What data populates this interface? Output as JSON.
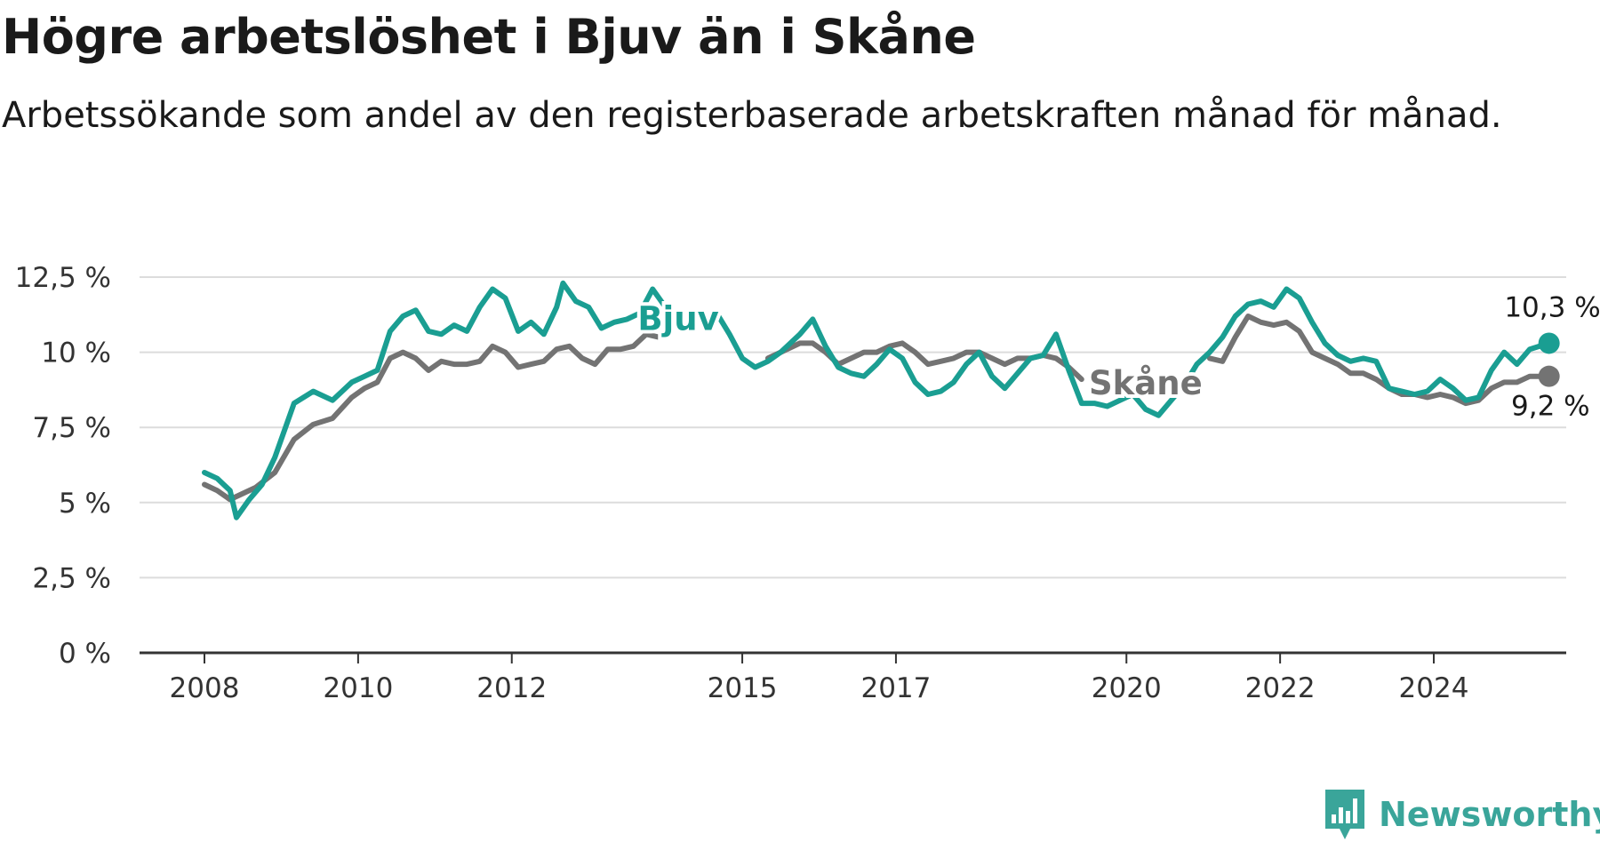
{
  "title": "Högre arbetslöshet i Bjuv än i Skåne",
  "subtitle": "Arbetssökande som andel av den registerbaserade arbetskraften månad för månad.",
  "brand": "Newsworthy",
  "colors": {
    "bjuv": "#1a9e92",
    "skane": "#737373",
    "grid": "#dcdcdc",
    "axis": "#333333",
    "brand": "#3aa59a"
  },
  "chart_data": {
    "type": "line",
    "title": "Högre arbetslöshet i Bjuv än i Skåne",
    "subtitle": "Arbetssökande som andel av den registerbaserade arbetskraften månad för månad.",
    "y_unit": "%",
    "ylim": [
      0,
      12.5
    ],
    "xlim": [
      "2007-09",
      "2025-09"
    ],
    "grid": true,
    "y_ticks": [
      0,
      2.5,
      5,
      7.5,
      10,
      12.5
    ],
    "y_tick_labels": [
      "0 %",
      "2,5 %",
      "5 %",
      "7,5 %",
      "10 %",
      "12,5 %"
    ],
    "x_ticks": [
      "2008",
      "2010",
      "2012",
      "2015",
      "2017",
      "2020",
      "2022",
      "2024"
    ],
    "series": [
      {
        "name": "Bjuv",
        "end_label": "10,3 %",
        "points": [
          [
            "2008-01",
            6.0
          ],
          [
            "2008-03",
            5.8
          ],
          [
            "2008-05",
            5.4
          ],
          [
            "2008-06",
            4.5
          ],
          [
            "2008-08",
            5.1
          ],
          [
            "2008-10",
            5.6
          ],
          [
            "2008-12",
            6.5
          ],
          [
            "2009-03",
            8.3
          ],
          [
            "2009-06",
            8.7
          ],
          [
            "2009-09",
            8.4
          ],
          [
            "2009-12",
            9.0
          ],
          [
            "2010-02",
            9.2
          ],
          [
            "2010-04",
            9.4
          ],
          [
            "2010-06",
            10.7
          ],
          [
            "2010-08",
            11.2
          ],
          [
            "2010-10",
            11.4
          ],
          [
            "2010-12",
            10.7
          ],
          [
            "2011-02",
            10.6
          ],
          [
            "2011-04",
            10.9
          ],
          [
            "2011-06",
            10.7
          ],
          [
            "2011-08",
            11.5
          ],
          [
            "2011-10",
            12.1
          ],
          [
            "2011-12",
            11.8
          ],
          [
            "2012-02",
            10.7
          ],
          [
            "2012-04",
            11.0
          ],
          [
            "2012-06",
            10.6
          ],
          [
            "2012-08",
            11.5
          ],
          [
            "2012-09",
            12.3
          ],
          [
            "2012-11",
            11.7
          ],
          [
            "2013-01",
            11.5
          ],
          [
            "2013-03",
            10.8
          ],
          [
            "2013-05",
            11.0
          ],
          [
            "2013-07",
            11.1
          ],
          [
            "2013-09",
            11.3
          ],
          [
            "2013-11",
            12.1
          ],
          [
            "2014-01",
            11.5
          ],
          [
            "2014-03",
            11.3
          ],
          [
            "2014-05",
            null
          ],
          [
            "2014-09",
            11.3
          ],
          [
            "2014-11",
            10.6
          ],
          [
            "2015-01",
            9.8
          ],
          [
            "2015-03",
            9.5
          ],
          [
            "2015-05",
            9.7
          ],
          [
            "2015-07",
            10.0
          ],
          [
            "2015-10",
            10.6
          ],
          [
            "2015-12",
            11.1
          ],
          [
            "2016-02",
            10.2
          ],
          [
            "2016-04",
            9.5
          ],
          [
            "2016-06",
            9.3
          ],
          [
            "2016-08",
            9.2
          ],
          [
            "2016-10",
            9.6
          ],
          [
            "2016-12",
            10.1
          ],
          [
            "2017-02",
            9.8
          ],
          [
            "2017-04",
            9.0
          ],
          [
            "2017-06",
            8.6
          ],
          [
            "2017-08",
            8.7
          ],
          [
            "2017-10",
            9.0
          ],
          [
            "2017-12",
            9.6
          ],
          [
            "2018-02",
            10.0
          ],
          [
            "2018-04",
            9.2
          ],
          [
            "2018-06",
            8.8
          ],
          [
            "2018-08",
            9.3
          ],
          [
            "2018-10",
            9.8
          ],
          [
            "2018-12",
            9.9
          ],
          [
            "2019-02",
            10.6
          ],
          [
            "2019-04",
            9.4
          ],
          [
            "2019-06",
            8.3
          ],
          [
            "2019-08",
            8.3
          ],
          [
            "2019-10",
            8.2
          ],
          [
            "2019-12",
            8.4
          ],
          [
            "2020-02",
            8.6
          ],
          [
            "2020-04",
            8.1
          ],
          [
            "2020-06",
            7.9
          ],
          [
            "2020-08",
            8.4
          ],
          [
            "2020-10",
            8.9
          ],
          [
            "2020-12",
            9.6
          ],
          [
            "2021-02",
            10.0
          ],
          [
            "2021-04",
            10.5
          ],
          [
            "2021-06",
            11.2
          ],
          [
            "2021-08",
            11.6
          ],
          [
            "2021-10",
            11.7
          ],
          [
            "2021-12",
            11.5
          ],
          [
            "2022-02",
            12.1
          ],
          [
            "2022-04",
            11.8
          ],
          [
            "2022-06",
            11.0
          ],
          [
            "2022-08",
            10.3
          ],
          [
            "2022-10",
            9.9
          ],
          [
            "2022-12",
            9.7
          ],
          [
            "2023-02",
            9.8
          ],
          [
            "2023-04",
            9.7
          ],
          [
            "2023-06",
            8.8
          ],
          [
            "2023-08",
            8.7
          ],
          [
            "2023-10",
            8.6
          ],
          [
            "2023-12",
            8.7
          ],
          [
            "2024-02",
            9.1
          ],
          [
            "2024-04",
            8.8
          ],
          [
            "2024-06",
            8.4
          ],
          [
            "2024-08",
            8.5
          ],
          [
            "2024-10",
            9.4
          ],
          [
            "2024-12",
            10.0
          ],
          [
            "2025-02",
            9.6
          ],
          [
            "2025-04",
            10.1
          ],
          [
            "2025-07",
            10.3
          ]
        ]
      },
      {
        "name": "Skåne",
        "end_label": "9,2 %",
        "points": [
          [
            "2008-01",
            5.6
          ],
          [
            "2008-03",
            5.4
          ],
          [
            "2008-05",
            5.1
          ],
          [
            "2008-07",
            5.3
          ],
          [
            "2008-09",
            5.5
          ],
          [
            "2008-12",
            6.0
          ],
          [
            "2009-03",
            7.1
          ],
          [
            "2009-06",
            7.6
          ],
          [
            "2009-09",
            7.8
          ],
          [
            "2009-12",
            8.5
          ],
          [
            "2010-02",
            8.8
          ],
          [
            "2010-04",
            9.0
          ],
          [
            "2010-06",
            9.8
          ],
          [
            "2010-08",
            10.0
          ],
          [
            "2010-10",
            9.8
          ],
          [
            "2010-12",
            9.4
          ],
          [
            "2011-02",
            9.7
          ],
          [
            "2011-04",
            9.6
          ],
          [
            "2011-06",
            9.6
          ],
          [
            "2011-08",
            9.7
          ],
          [
            "2011-10",
            10.2
          ],
          [
            "2011-12",
            10.0
          ],
          [
            "2012-02",
            9.5
          ],
          [
            "2012-04",
            9.6
          ],
          [
            "2012-06",
            9.7
          ],
          [
            "2012-08",
            10.1
          ],
          [
            "2012-10",
            10.2
          ],
          [
            "2012-12",
            9.8
          ],
          [
            "2013-02",
            9.6
          ],
          [
            "2013-04",
            10.1
          ],
          [
            "2013-06",
            10.1
          ],
          [
            "2013-08",
            10.2
          ],
          [
            "2013-10",
            10.6
          ],
          [
            "2013-12",
            10.5
          ],
          [
            "2014-02",
            null
          ],
          [
            "2015-05",
            9.8
          ],
          [
            "2015-07",
            10.0
          ],
          [
            "2015-10",
            10.3
          ],
          [
            "2015-12",
            10.3
          ],
          [
            "2016-02",
            10.0
          ],
          [
            "2016-04",
            9.6
          ],
          [
            "2016-06",
            9.8
          ],
          [
            "2016-08",
            10.0
          ],
          [
            "2016-10",
            10.0
          ],
          [
            "2016-12",
            10.2
          ],
          [
            "2017-02",
            10.3
          ],
          [
            "2017-04",
            10.0
          ],
          [
            "2017-06",
            9.6
          ],
          [
            "2017-08",
            9.7
          ],
          [
            "2017-10",
            9.8
          ],
          [
            "2017-12",
            10.0
          ],
          [
            "2018-02",
            10.0
          ],
          [
            "2018-04",
            9.8
          ],
          [
            "2018-06",
            9.6
          ],
          [
            "2018-08",
            9.8
          ],
          [
            "2018-10",
            9.8
          ],
          [
            "2018-12",
            9.9
          ],
          [
            "2019-02",
            9.8
          ],
          [
            "2019-04",
            9.5
          ],
          [
            "2019-06",
            9.1
          ],
          [
            "2019-08",
            null
          ],
          [
            "2021-02",
            9.8
          ],
          [
            "2021-04",
            9.7
          ],
          [
            "2021-06",
            10.5
          ],
          [
            "2021-08",
            11.2
          ],
          [
            "2021-10",
            11.0
          ],
          [
            "2021-12",
            10.9
          ],
          [
            "2022-02",
            11.0
          ],
          [
            "2022-04",
            10.7
          ],
          [
            "2022-06",
            10.0
          ],
          [
            "2022-08",
            9.8
          ],
          [
            "2022-10",
            9.6
          ],
          [
            "2022-12",
            9.3
          ],
          [
            "2023-02",
            9.3
          ],
          [
            "2023-04",
            9.1
          ],
          [
            "2023-06",
            8.8
          ],
          [
            "2023-08",
            8.6
          ],
          [
            "2023-10",
            8.6
          ],
          [
            "2023-12",
            8.5
          ],
          [
            "2024-02",
            8.6
          ],
          [
            "2024-04",
            8.5
          ],
          [
            "2024-06",
            8.3
          ],
          [
            "2024-08",
            8.4
          ],
          [
            "2024-10",
            8.8
          ],
          [
            "2024-12",
            9.0
          ],
          [
            "2025-02",
            9.0
          ],
          [
            "2025-04",
            9.2
          ],
          [
            "2025-07",
            9.2
          ]
        ]
      }
    ]
  }
}
